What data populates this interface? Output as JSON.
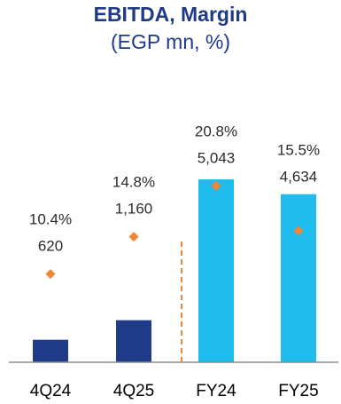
{
  "chart_data": {
    "type": "bar",
    "title": "EBITDA, Margin",
    "subtitle": "(EGP mn, %)",
    "categories": [
      "4Q24",
      "4Q25",
      "FY24",
      "FY25"
    ],
    "series": [
      {
        "name": "",
        "values": [
          620,
          1160,
          5043,
          4634
        ],
        "labels": [
          "620",
          "1,160",
          "5,043",
          "4,634"
        ]
      },
      {
        "name": "",
        "values": [
          10.4,
          14.8,
          20.8,
          15.5
        ],
        "labels": [
          "10.4%",
          "14.8%",
          "20.8%",
          "15.5%"
        ]
      }
    ],
    "ylim": [
      0,
      5043
    ],
    "margin_ylim": [
      0,
      25
    ],
    "separator": "between 4Q25 and FY24",
    "colors": {
      "quarter_bar": "#1f3a86",
      "year_bar": "#1fbcee",
      "margin_marker": "#f08533",
      "separator": "#f08533",
      "baseline": "#8c8c8c",
      "title": "#1f3a86",
      "text": "#2b2b2b"
    }
  }
}
